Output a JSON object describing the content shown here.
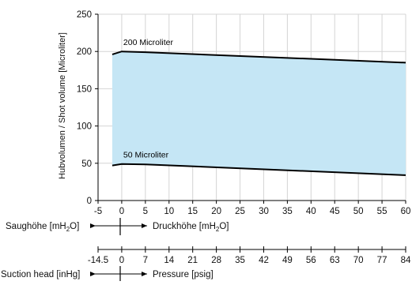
{
  "chart_data": {
    "type": "area",
    "title": "",
    "ylabel": "Hubvolumen / Shot volume [Microliter]",
    "xlim": [
      -5,
      60
    ],
    "ylim": [
      0,
      250
    ],
    "x_ticks": [
      -5,
      0,
      5,
      10,
      15,
      20,
      25,
      30,
      35,
      40,
      45,
      50,
      55,
      60
    ],
    "y_ticks": [
      0,
      50,
      100,
      150,
      200,
      250
    ],
    "grid": true,
    "fill_color": "#c5e6f5",
    "series": [
      {
        "name": "200 Microliter",
        "x": [
          -2,
          0,
          5,
          60
        ],
        "y": [
          196,
          200,
          199,
          185
        ]
      },
      {
        "name": "50 Microliter",
        "x": [
          -2,
          0,
          5,
          60
        ],
        "y": [
          47,
          49,
          48.5,
          34
        ]
      }
    ],
    "secondary_scales": [
      {
        "left_label": "Saughöhe [mH",
        "left_sub": "2",
        "left_end": "O]",
        "right_label": "Druckhöhe [mH",
        "right_sub": "2",
        "right_end": "O]"
      },
      {
        "tick_labels": [
          "-14.5",
          "0",
          "7",
          "14",
          "21",
          "28",
          "35",
          "42",
          "49",
          "56",
          "63",
          "70",
          "77",
          "84"
        ],
        "left_label": "Suction head [inHg]",
        "right_label": "Pressure [psig]"
      }
    ]
  }
}
